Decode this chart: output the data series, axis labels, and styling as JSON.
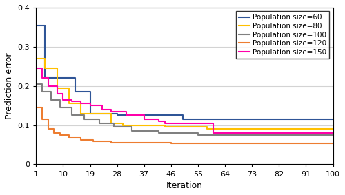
{
  "title": "",
  "xlabel": "Iteration",
  "ylabel": "Prediction error",
  "xlim": [
    1,
    100
  ],
  "ylim": [
    0,
    0.4
  ],
  "xticks": [
    1,
    10,
    19,
    28,
    37,
    46,
    55,
    64,
    73,
    82,
    91,
    100
  ],
  "yticks": [
    0,
    0.1,
    0.2,
    0.3,
    0.4
  ],
  "series": [
    {
      "label": "Population size=60",
      "color": "#2f5597",
      "x": [
        1,
        4,
        10,
        14,
        19,
        22,
        28,
        50,
        55,
        100
      ],
      "y": [
        0.355,
        0.22,
        0.22,
        0.185,
        0.13,
        0.13,
        0.125,
        0.115,
        0.115,
        0.115
      ]
    },
    {
      "label": "Population size=80",
      "color": "#ffc000",
      "x": [
        1,
        4,
        8,
        12,
        16,
        22,
        26,
        30,
        44,
        58,
        100
      ],
      "y": [
        0.27,
        0.245,
        0.195,
        0.155,
        0.13,
        0.13,
        0.105,
        0.1,
        0.095,
        0.09,
        0.09
      ]
    },
    {
      "label": "Population size=100",
      "color": "#808080",
      "x": [
        1,
        3,
        6,
        9,
        13,
        17,
        22,
        27,
        33,
        42,
        55,
        100
      ],
      "y": [
        0.205,
        0.185,
        0.165,
        0.145,
        0.125,
        0.115,
        0.105,
        0.095,
        0.085,
        0.08,
        0.075,
        0.072
      ]
    },
    {
      "label": "Population size=120",
      "color": "#ed7d31",
      "x": [
        1,
        3,
        5,
        7,
        9,
        12,
        16,
        20,
        26,
        40,
        46,
        100
      ],
      "y": [
        0.145,
        0.115,
        0.09,
        0.08,
        0.075,
        0.068,
        0.062,
        0.058,
        0.055,
        0.055,
        0.054,
        0.054
      ]
    },
    {
      "label": "Population size=150",
      "color": "#ff00aa",
      "x": [
        1,
        3,
        5,
        8,
        10,
        13,
        16,
        19,
        23,
        26,
        31,
        37,
        42,
        44,
        60,
        100
      ],
      "y": [
        0.245,
        0.22,
        0.2,
        0.18,
        0.165,
        0.16,
        0.155,
        0.15,
        0.14,
        0.135,
        0.125,
        0.115,
        0.11,
        0.105,
        0.08,
        0.075
      ]
    }
  ],
  "grid_color": "#d3d3d3",
  "background_color": "#ffffff",
  "legend_loc": "upper right",
  "legend_fontsize": 7.5
}
